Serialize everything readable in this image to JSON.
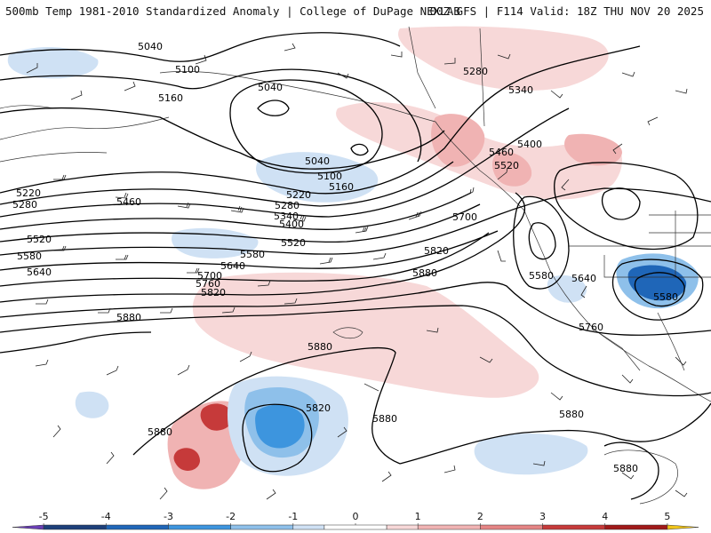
{
  "header": {
    "left_title": "500mb Temp 1981-2010 Standardized Anomaly | College of DuPage NEXLAB",
    "right_title": "00Z GFS | F114 Valid: 18Z THU NOV 20 2025"
  },
  "map": {
    "contour_labels": [
      {
        "id": "5040-a",
        "text": "5040"
      },
      {
        "id": "5100-a",
        "text": "5100"
      },
      {
        "id": "5160-a",
        "text": "5160"
      },
      {
        "id": "5040-b",
        "text": "5040"
      },
      {
        "id": "5040-c",
        "text": "5040"
      },
      {
        "id": "5100-b",
        "text": "5100"
      },
      {
        "id": "5160-b",
        "text": "5160"
      },
      {
        "id": "5220-a",
        "text": "5220"
      },
      {
        "id": "5280-a",
        "text": "5280"
      },
      {
        "id": "5220-b",
        "text": "5220"
      },
      {
        "id": "5280-b",
        "text": "5280"
      },
      {
        "id": "5340-a",
        "text": "5340"
      },
      {
        "id": "5400-a",
        "text": "5400"
      },
      {
        "id": "5460-a",
        "text": "5460"
      },
      {
        "id": "5520-a",
        "text": "5520"
      },
      {
        "id": "5520-b",
        "text": "5520"
      },
      {
        "id": "5580-a",
        "text": "5580"
      },
      {
        "id": "5580-b",
        "text": "5580"
      },
      {
        "id": "5640-a",
        "text": "5640"
      },
      {
        "id": "5640-b",
        "text": "5640"
      },
      {
        "id": "5700-a",
        "text": "5700"
      },
      {
        "id": "5760-a",
        "text": "5760"
      },
      {
        "id": "5820-a",
        "text": "5820"
      },
      {
        "id": "5880-a",
        "text": "5880"
      },
      {
        "id": "5280-c",
        "text": "5280"
      },
      {
        "id": "5340-b",
        "text": "5340"
      },
      {
        "id": "5400-b",
        "text": "5400"
      },
      {
        "id": "5460-b",
        "text": "5460"
      },
      {
        "id": "5520-c",
        "text": "5520"
      },
      {
        "id": "5700-b",
        "text": "5700"
      },
      {
        "id": "5820-b",
        "text": "5820"
      },
      {
        "id": "5880-b",
        "text": "5880"
      },
      {
        "id": "5580-c",
        "text": "5580"
      },
      {
        "id": "5640-c",
        "text": "5640"
      },
      {
        "id": "5580-d",
        "text": "5580"
      },
      {
        "id": "5760-b",
        "text": "5760"
      },
      {
        "id": "5880-c",
        "text": "5880"
      },
      {
        "id": "5880-d",
        "text": "5880"
      },
      {
        "id": "5880-e",
        "text": "5880"
      },
      {
        "id": "5820-c",
        "text": "5820"
      },
      {
        "id": "5880-f",
        "text": "5880"
      },
      {
        "id": "5880-g",
        "text": "5880"
      }
    ]
  },
  "colorbar": {
    "ticks": [
      "-5",
      "-4",
      "-3",
      "-2",
      "-1",
      "0",
      "1",
      "2",
      "3",
      "4",
      "5"
    ],
    "min_value": -5.5,
    "max_value": 5.5,
    "segments": [
      {
        "from": -5.5,
        "to": -5,
        "color": "#6a3fb5"
      },
      {
        "from": -5,
        "to": -4,
        "color": "#1c3f7a"
      },
      {
        "from": -4,
        "to": -3,
        "color": "#1f66b8"
      },
      {
        "from": -3,
        "to": -2,
        "color": "#3d95de"
      },
      {
        "from": -2,
        "to": -1,
        "color": "#8ec0ea"
      },
      {
        "from": -1,
        "to": -0.5,
        "color": "#cfe1f4"
      },
      {
        "from": -0.5,
        "to": 0.5,
        "color": "#ffffff"
      },
      {
        "from": 0.5,
        "to": 1,
        "color": "#f7d8d8"
      },
      {
        "from": 1,
        "to": 2,
        "color": "#f0b3b3"
      },
      {
        "from": 2,
        "to": 3,
        "color": "#e58585"
      },
      {
        "from": 3,
        "to": 4,
        "color": "#c63a3a"
      },
      {
        "from": 4,
        "to": 5,
        "color": "#a01919"
      },
      {
        "from": 5,
        "to": 5.5,
        "color": "#f0c419"
      }
    ]
  }
}
